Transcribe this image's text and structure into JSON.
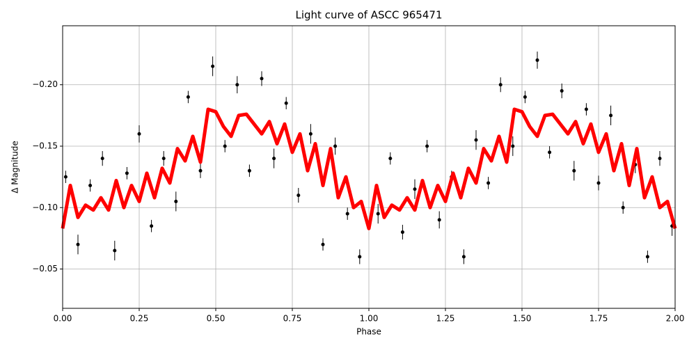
{
  "chart_data": {
    "type": "scatter",
    "title": "Light curve of ASCC 965471",
    "x_label": "Phase",
    "y_label": "Δ Magnitude",
    "xlim": [
      0,
      2
    ],
    "ylim": [
      -0.248,
      -0.018
    ],
    "invert_y": true,
    "grid": true,
    "xticks": [
      {
        "value": 0,
        "label": "0.00"
      },
      {
        "value": 0.25,
        "label": "0.25"
      },
      {
        "value": 0.5,
        "label": "0.50"
      },
      {
        "value": 0.75,
        "label": "0.75"
      },
      {
        "value": 1,
        "label": "1.00"
      },
      {
        "value": 1.25,
        "label": "1.25"
      },
      {
        "value": 1.5,
        "label": "1.50"
      },
      {
        "value": 1.75,
        "label": "1.75"
      },
      {
        "value": 2,
        "label": "2.00"
      }
    ],
    "yticks": [
      {
        "value": -0.2,
        "label": "−0.20"
      },
      {
        "value": -0.15,
        "label": "−0.15"
      },
      {
        "value": -0.1,
        "label": "−0.10"
      },
      {
        "value": -0.05,
        "label": "−0.05"
      }
    ],
    "points": {
      "color": "#000000",
      "x": [
        0.01,
        0.05,
        0.09,
        0.13,
        0.17,
        0.21,
        0.25,
        0.29,
        0.33,
        0.37,
        0.41,
        0.45,
        0.49,
        0.53,
        0.57,
        0.61,
        0.65,
        0.69,
        0.73,
        0.77,
        0.81,
        0.85,
        0.89,
        0.93,
        0.97,
        1.03,
        1.07,
        1.11,
        1.15,
        1.19,
        1.23,
        1.27,
        1.31,
        1.35,
        1.39,
        1.43,
        1.47,
        1.51,
        1.55,
        1.59,
        1.63,
        1.67,
        1.71,
        1.75,
        1.79,
        1.83,
        1.87,
        1.91,
        1.95,
        1.99
      ],
      "values": [
        -0.125,
        -0.07,
        -0.118,
        -0.14,
        -0.065,
        -0.128,
        -0.16,
        -0.085,
        -0.14,
        -0.105,
        -0.19,
        -0.13,
        -0.215,
        -0.15,
        -0.2,
        -0.13,
        -0.205,
        -0.14,
        -0.185,
        -0.11,
        -0.16,
        -0.07,
        -0.15,
        -0.095,
        -0.06,
        -0.095,
        -0.14,
        -0.08,
        -0.115,
        -0.15,
        -0.09,
        -0.125,
        -0.06,
        -0.155,
        -0.12,
        -0.2,
        -0.15,
        -0.19,
        -0.22,
        -0.145,
        -0.195,
        -0.13,
        -0.18,
        -0.12,
        -0.175,
        -0.1,
        -0.135,
        -0.06,
        -0.14,
        -0.085
      ],
      "errors": [
        0.005,
        0.008,
        0.005,
        0.006,
        0.008,
        0.005,
        0.007,
        0.005,
        0.006,
        0.008,
        0.005,
        0.006,
        0.008,
        0.005,
        0.007,
        0.005,
        0.006,
        0.008,
        0.005,
        0.006,
        0.008,
        0.005,
        0.007,
        0.005,
        0.006,
        0.008,
        0.005,
        0.006,
        0.008,
        0.005,
        0.007,
        0.005,
        0.006,
        0.008,
        0.005,
        0.006,
        0.008,
        0.005,
        0.007,
        0.005,
        0.006,
        0.008,
        0.005,
        0.006,
        0.008,
        0.005,
        0.007,
        0.005,
        0.006,
        0.008
      ]
    },
    "curve": {
      "color": "#ff0000",
      "x": [
        0,
        0.025,
        0.05,
        0.075,
        0.1,
        0.125,
        0.15,
        0.175,
        0.2,
        0.225,
        0.25,
        0.275,
        0.3,
        0.325,
        0.35,
        0.375,
        0.4,
        0.425,
        0.45,
        0.475,
        0.5,
        0.525,
        0.55,
        0.575,
        0.6,
        0.625,
        0.65,
        0.675,
        0.7,
        0.725,
        0.75,
        0.775,
        0.8,
        0.825,
        0.85,
        0.875,
        0.9,
        0.925,
        0.95,
        0.975,
        1,
        1.025,
        1.05,
        1.075,
        1.1,
        1.125,
        1.15,
        1.175,
        1.2,
        1.225,
        1.25,
        1.275,
        1.3,
        1.325,
        1.35,
        1.375,
        1.4,
        1.425,
        1.45,
        1.475,
        1.5,
        1.525,
        1.55,
        1.575,
        1.6,
        1.625,
        1.65,
        1.675,
        1.7,
        1.725,
        1.75,
        1.775,
        1.8,
        1.825,
        1.85,
        1.875,
        1.9,
        1.925,
        1.95,
        1.975,
        2
      ],
      "values": [
        -0.083,
        -0.118,
        -0.092,
        -0.102,
        -0.098,
        -0.108,
        -0.098,
        -0.122,
        -0.1,
        -0.118,
        -0.105,
        -0.128,
        -0.108,
        -0.132,
        -0.12,
        -0.148,
        -0.138,
        -0.158,
        -0.137,
        -0.18,
        -0.178,
        -0.166,
        -0.158,
        -0.175,
        -0.176,
        -0.168,
        -0.16,
        -0.17,
        -0.152,
        -0.168,
        -0.145,
        -0.16,
        -0.13,
        -0.152,
        -0.118,
        -0.148,
        -0.108,
        -0.125,
        -0.1,
        -0.105,
        -0.083,
        -0.118,
        -0.092,
        -0.102,
        -0.098,
        -0.108,
        -0.098,
        -0.122,
        -0.1,
        -0.118,
        -0.105,
        -0.128,
        -0.108,
        -0.132,
        -0.12,
        -0.148,
        -0.138,
        -0.158,
        -0.137,
        -0.18,
        -0.178,
        -0.166,
        -0.158,
        -0.175,
        -0.176,
        -0.168,
        -0.16,
        -0.17,
        -0.152,
        -0.168,
        -0.145,
        -0.16,
        -0.13,
        -0.152,
        -0.118,
        -0.148,
        -0.108,
        -0.125,
        -0.1,
        -0.105,
        -0.083
      ]
    }
  }
}
